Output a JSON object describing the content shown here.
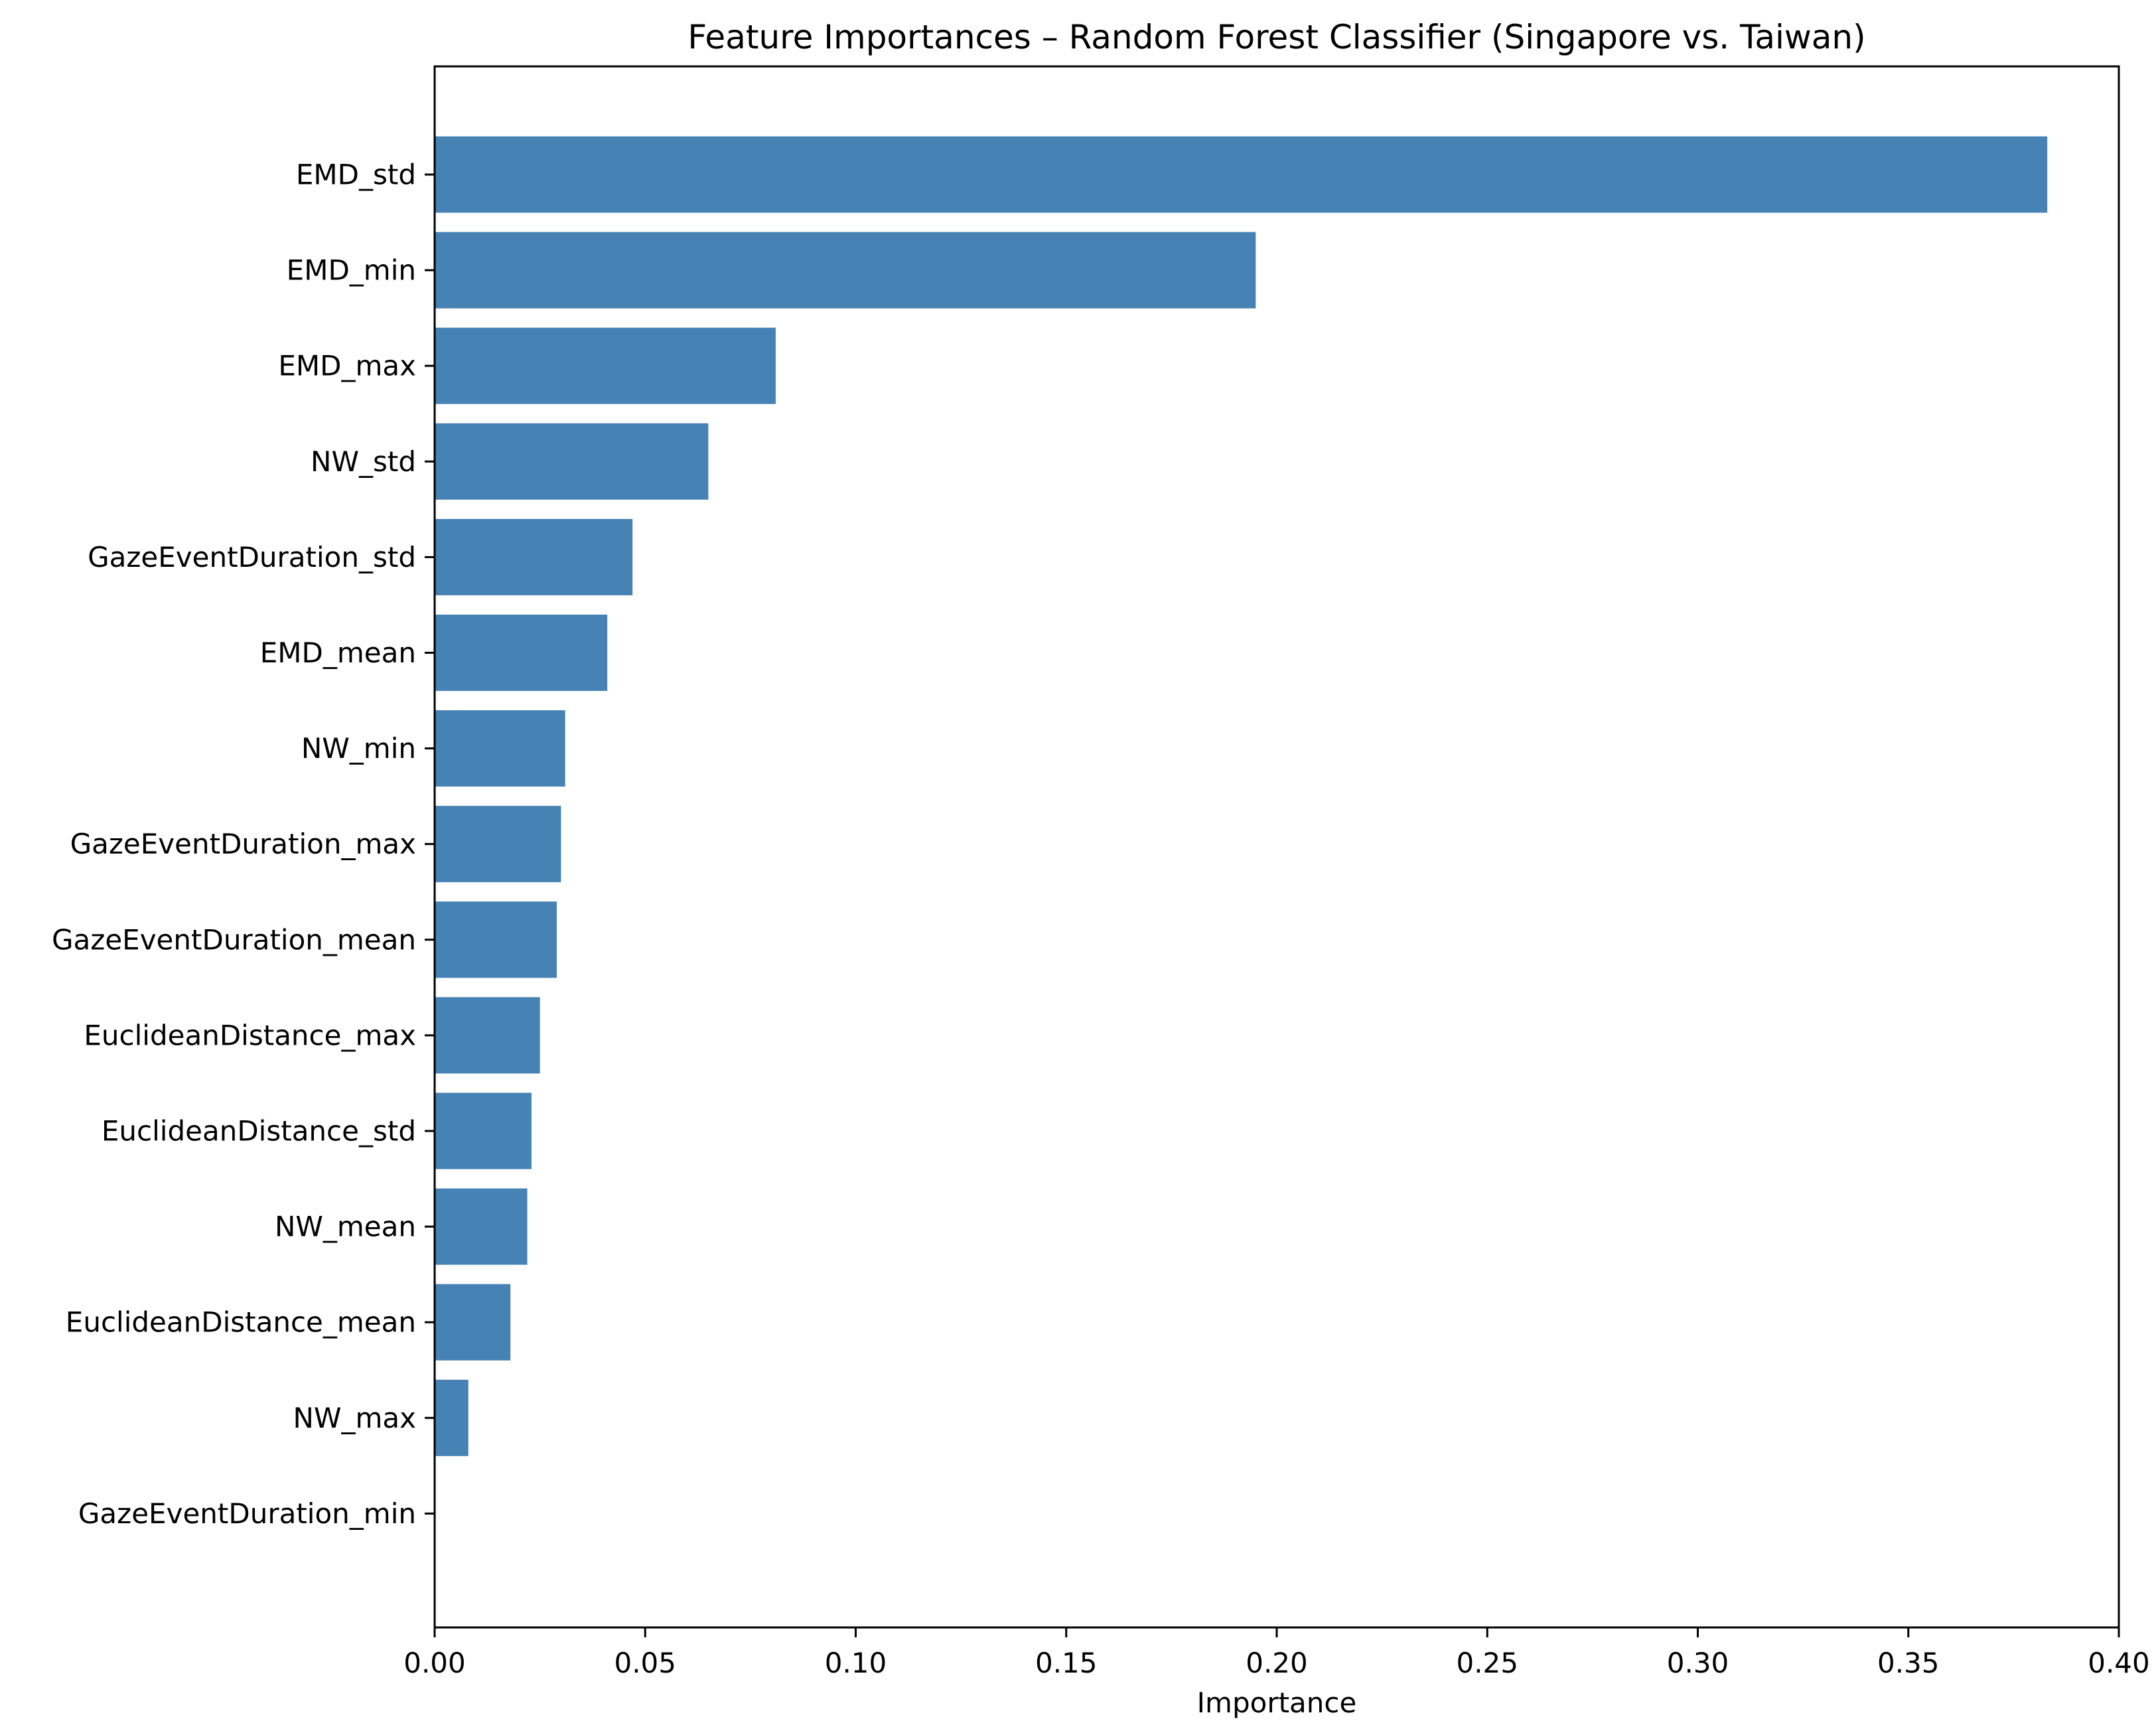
{
  "chart_data": {
    "type": "bar",
    "orientation": "horizontal",
    "title": "Feature Importances – Random Forest Classifier (Singapore vs. Taiwan)",
    "xlabel": "Importance",
    "ylabel": "",
    "xlim": [
      0,
      0.4
    ],
    "xticks": [
      "0.00",
      "0.05",
      "0.10",
      "0.15",
      "0.20",
      "0.25",
      "0.30",
      "0.35",
      "0.40"
    ],
    "grid": false,
    "legend": "none",
    "bar_color": "#4682b4",
    "categories": [
      "EMD_std",
      "EMD_min",
      "EMD_max",
      "NW_std",
      "GazeEventDuration_std",
      "EMD_mean",
      "NW_min",
      "GazeEventDuration_max",
      "GazeEventDuration_mean",
      "EuclideanDistance_max",
      "EuclideanDistance_std",
      "NW_mean",
      "EuclideanDistance_mean",
      "NW_max",
      "GazeEventDuration_min"
    ],
    "values": [
      0.383,
      0.195,
      0.081,
      0.065,
      0.047,
      0.041,
      0.031,
      0.03,
      0.029,
      0.025,
      0.023,
      0.022,
      0.018,
      0.008,
      0.0
    ]
  }
}
